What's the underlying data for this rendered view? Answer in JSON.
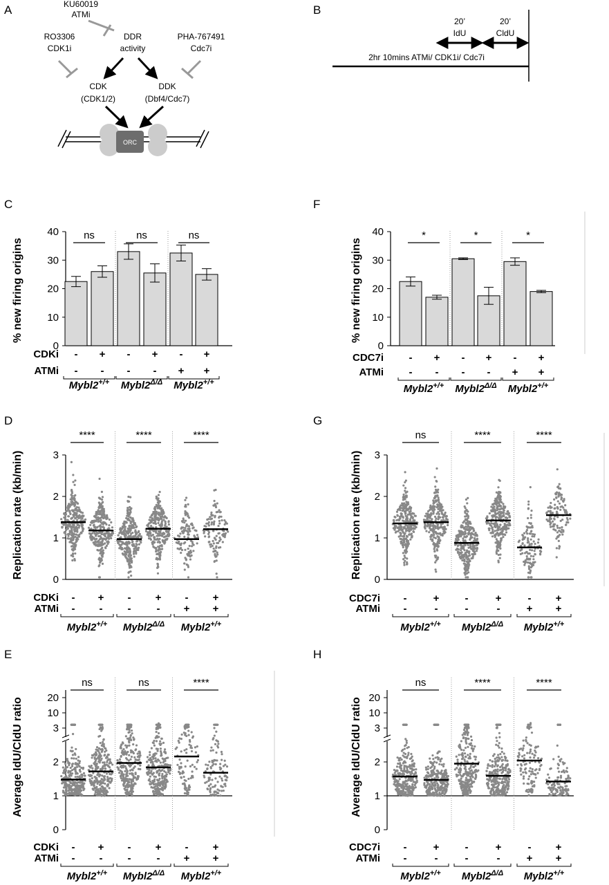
{
  "panel_letters": [
    "A",
    "B",
    "C",
    "D",
    "E",
    "F",
    "G",
    "H"
  ],
  "panel_A": {
    "ku": "KU60019",
    "atmi": "ATMi",
    "ro": "RO3306",
    "cdk1i": "CDK1i",
    "ddr1": "DDR",
    "ddr2": "activity",
    "pha": "PHA-767491",
    "cdc7i": "Cdc7i",
    "cdk1": "CDK",
    "cdk2": "(CDK1/2)",
    "ddk1": "DDK",
    "ddk2": "(Dbf4/Cdc7)",
    "orc": "ORC"
  },
  "panel_B": {
    "idu_min": "20’",
    "idu": "IdU",
    "cldu_min": "20’",
    "cldu": "CldU",
    "timeline": "2hr 10mins ATMi/ CDK1i/ Cdc7i"
  },
  "treat_labels": {
    "cdki": "CDKi",
    "cdc7i": "CDC7i",
    "atmi": "ATMi"
  },
  "treat_rows": {
    "drug": [
      "-",
      "+",
      "-",
      "+",
      "-",
      "+"
    ],
    "atm": [
      "-",
      "-",
      "-",
      "-",
      "+",
      "+"
    ]
  },
  "genotypes": {
    "wt": "Mybl2",
    "wt_sup": "+/+",
    "ko": "Mybl2",
    "ko_sup": "Δ/Δ"
  },
  "ylabels": {
    "origins": "% new firing origins",
    "rate": "Replication rate (kb/min)",
    "ratio": "Average IdU/CldU ratio"
  },
  "chart_data": [
    {
      "panel": "C",
      "type": "bar",
      "ylabel": "% new firing origins",
      "ylim": [
        0,
        40
      ],
      "yticks": [
        0,
        10,
        20,
        30,
        40
      ],
      "categories": [
        "Mybl2+/+ -",
        "Mybl2+/+ CDKi",
        "Mybl2Δ/Δ -",
        "Mybl2Δ/Δ CDKi",
        "Mybl2+/+ ATMi",
        "Mybl2+/+ ATMi+CDKi"
      ],
      "values": [
        22.5,
        26,
        33,
        25.5,
        32.5,
        25
      ],
      "errors": [
        1.8,
        2,
        2.7,
        3.2,
        2.8,
        2
      ],
      "significance": [
        "ns",
        "ns",
        "ns"
      ]
    },
    {
      "panel": "F",
      "type": "bar",
      "ylabel": "% new firing origins",
      "ylim": [
        0,
        40
      ],
      "yticks": [
        0,
        10,
        20,
        30,
        40
      ],
      "categories": [
        "Mybl2+/+ -",
        "Mybl2+/+ CDC7i",
        "Mybl2Δ/Δ -",
        "Mybl2Δ/Δ CDC7i",
        "Mybl2+/+ ATMi",
        "Mybl2+/+ ATMi+CDC7i"
      ],
      "values": [
        22.5,
        17,
        30.5,
        17.5,
        29.5,
        19
      ],
      "errors": [
        1.6,
        0.7,
        0.3,
        3,
        1.3,
        0.4
      ],
      "significance": [
        "*",
        "*",
        "*"
      ]
    },
    {
      "panel": "D",
      "type": "scatter",
      "ylabel": "Replication rate (kb/min)",
      "ylim": [
        0,
        3
      ],
      "yticks": [
        0,
        1,
        2,
        3
      ],
      "medians": [
        1.38,
        1.18,
        0.97,
        1.22,
        0.97,
        1.21
      ],
      "n": [
        300,
        300,
        300,
        300,
        120,
        120
      ],
      "significance": [
        "****",
        "****",
        "****"
      ]
    },
    {
      "panel": "G",
      "type": "scatter",
      "ylabel": "Replication rate (kb/min)",
      "ylim": [
        0,
        3
      ],
      "yticks": [
        0,
        1,
        2,
        3
      ],
      "medians": [
        1.35,
        1.38,
        0.88,
        1.42,
        0.77,
        1.55
      ],
      "n": [
        300,
        300,
        300,
        300,
        130,
        130
      ],
      "significance": [
        "ns",
        "****",
        "****"
      ]
    },
    {
      "panel": "E",
      "type": "scatter",
      "ylabel": "Average IdU/CldU ratio",
      "ylim": [
        0,
        20
      ],
      "yticks": [
        0,
        1,
        2,
        3,
        10,
        20
      ],
      "medians": [
        1.48,
        1.72,
        1.97,
        1.84,
        2.16,
        1.68
      ],
      "n": [
        300,
        300,
        300,
        300,
        120,
        120
      ],
      "significance": [
        "ns",
        "ns",
        "****"
      ]
    },
    {
      "panel": "H",
      "type": "scatter",
      "ylabel": "Average IdU/CldU ratio",
      "ylim": [
        0,
        20
      ],
      "yticks": [
        0,
        1,
        2,
        3,
        10,
        20
      ],
      "medians": [
        1.57,
        1.47,
        1.95,
        1.59,
        2.04,
        1.42
      ],
      "n": [
        300,
        300,
        300,
        300,
        130,
        130
      ],
      "significance": [
        "ns",
        "****",
        "****"
      ]
    }
  ]
}
